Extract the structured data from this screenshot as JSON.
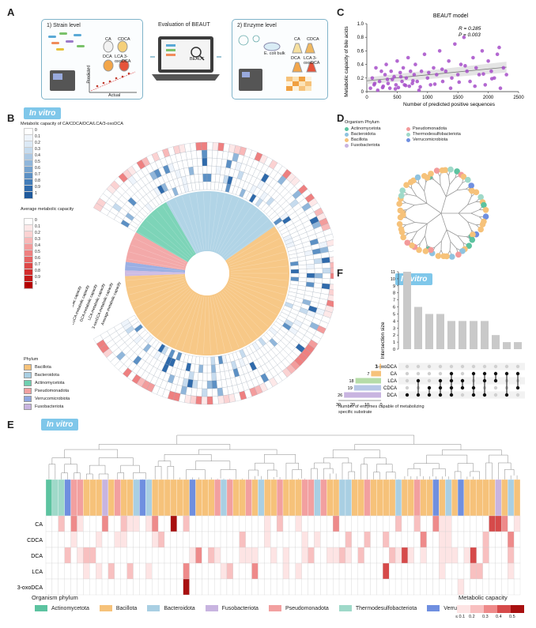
{
  "panels": {
    "a": "A",
    "b": "B",
    "c": "C",
    "d": "D",
    "e": "E",
    "f": "F"
  },
  "badge": "In vitro",
  "panel_a": {
    "left_title": "1) Strain level",
    "center_title": "Evaluation of BEAUT",
    "right_title": "2) Enzyme level",
    "acids_left": [
      "CA",
      "CDCA",
      "DCA",
      "LCA 3-oxoDCA"
    ],
    "acids_right": [
      "CA",
      "CDCA",
      "DCA",
      "LCA 3-oxoDCA"
    ],
    "predicted": "Predicted",
    "actual": "Actual",
    "laptop_text": "BEAUT",
    "ecoli": "E. coli bulk"
  },
  "panel_b": {
    "scale_title": "Metabolic capacity of CA/CDCA/DCA/LCA/3-oxoDCA",
    "scale_ticks": [
      "0",
      "0.1",
      "0.2",
      "0.3",
      "0.4",
      "0.5",
      "0.6",
      "0.7",
      "0.8",
      "0.9",
      "1"
    ],
    "avg_title": "Average metabolic capacity",
    "avg_ticks": [
      "0",
      "0.1",
      "0.2",
      "0.3",
      "0.4",
      "0.5",
      "0.6",
      "0.7",
      "0.8",
      "0.9",
      "1"
    ],
    "ring_labels": [
      "Average metabolic capacity",
      "3-oxoDCA metabolic capacity",
      "LCA metabolic capacity",
      "DCA metabolic capacity",
      "CDCA metabolic capacity",
      "CA metabolic capacity"
    ],
    "phylum_title": "Phylum",
    "phyla": [
      {
        "name": "Bacillota",
        "color": "#f6c27a"
      },
      {
        "name": "Bacteroidota",
        "color": "#a9cfe3"
      },
      {
        "name": "Actinomycetota",
        "color": "#6fcfb0"
      },
      {
        "name": "Pseudomonadota",
        "color": "#f2a0a0"
      },
      {
        "name": "Verrucomicrobiota",
        "color": "#8fa6e0"
      },
      {
        "name": "Fusobacteriota",
        "color": "#c8b4e0"
      }
    ]
  },
  "panel_d": {
    "legend_title": "Organism Phylum",
    "items": [
      {
        "name": "Actinomycetota",
        "color": "#5cc3a0"
      },
      {
        "name": "Pseudomonadota",
        "color": "#f39a9a"
      },
      {
        "name": "Bacteroidota",
        "color": "#8fc3e0"
      },
      {
        "name": "Thermodesulfobacteriota",
        "color": "#9fd9c9"
      },
      {
        "name": "Bacillota",
        "color": "#f6c27a"
      },
      {
        "name": "Verrucomicrobiota",
        "color": "#6f8fe0"
      },
      {
        "name": "Fusobacteriota",
        "color": "#c8b4e0"
      }
    ]
  },
  "panel_e": {
    "rows": [
      "CA",
      "CDCA",
      "DCA",
      "LCA",
      "3-oxoDCA"
    ],
    "legend_title": "Organism phylum",
    "phyla": [
      {
        "name": "Actinomycetota",
        "color": "#5cc3a0"
      },
      {
        "name": "Bacillota",
        "color": "#f6c27a"
      },
      {
        "name": "Bacteroidota",
        "color": "#a9cfe3"
      },
      {
        "name": "Fusobacteriota",
        "color": "#c8b4e0"
      },
      {
        "name": "Pseudomonadota",
        "color": "#f2a0a0"
      },
      {
        "name": "Thermodesulfobacteriota",
        "color": "#9fd9c9"
      },
      {
        "name": "Verrucomicrobiota",
        "color": "#6f8fe0"
      }
    ],
    "capacity_title": "Metabolic capacity",
    "capacity_ticks": [
      "≤ 0.1",
      "0.2",
      "0.3",
      "0.4",
      "0.5"
    ]
  },
  "chart_data": [
    {
      "type": "scatter",
      "title": "BEAUT model",
      "xlabel": "Number of predicted positive sequences",
      "ylabel": "Metabolic capacity of bile acids",
      "xlim": [
        0,
        2500
      ],
      "ylim": [
        0,
        1.0
      ],
      "xticks": [
        "0",
        "500",
        "1000",
        "1500",
        "2000",
        "2500"
      ],
      "yticks": [
        "0",
        "0.2",
        "0.4",
        "0.6",
        "0.8",
        "1.0"
      ],
      "stats": [
        "R = 0.285",
        "P = 0.003"
      ],
      "point_color": "#a64ec9",
      "x": [
        60,
        90,
        120,
        150,
        180,
        210,
        240,
        270,
        300,
        320,
        350,
        380,
        400,
        420,
        450,
        480,
        500,
        520,
        550,
        580,
        600,
        620,
        650,
        680,
        700,
        720,
        750,
        780,
        800,
        830,
        860,
        900,
        950,
        1000,
        1050,
        1100,
        1150,
        1200,
        1250,
        1300,
        1350,
        1400,
        1450,
        1500,
        1550,
        1600,
        1650,
        1700,
        1750,
        1800,
        1850,
        1900,
        1950,
        2000,
        2050,
        2100,
        2150,
        2200,
        2250,
        2300,
        130,
        260,
        340,
        470,
        560,
        640,
        760,
        880,
        1020,
        1120,
        1240,
        1380,
        1520,
        1620,
        1780,
        1920,
        2060,
        2180
      ],
      "y": [
        0.05,
        0.2,
        0.1,
        0.35,
        0.02,
        0.15,
        0.3,
        0.08,
        0.25,
        0.4,
        0.12,
        0.05,
        0.3,
        0.18,
        0.22,
        0.1,
        0.45,
        0.06,
        0.28,
        0.15,
        0.35,
        0.1,
        0.2,
        0.5,
        0.08,
        0.3,
        0.12,
        0.25,
        0.4,
        0.15,
        0.02,
        0.3,
        0.55,
        0.2,
        0.1,
        0.35,
        0.25,
        0.6,
        0.15,
        0.3,
        0.45,
        0.2,
        0.7,
        0.25,
        0.4,
        0.8,
        0.3,
        0.15,
        0.5,
        0.35,
        0.25,
        0.6,
        0.1,
        0.45,
        0.3,
        0.2,
        0.55,
        0.05,
        0.35,
        0.25,
        0.12,
        0.06,
        0.18,
        0.04,
        0.22,
        0.09,
        0.16,
        0.07,
        0.28,
        0.11,
        0.33,
        0.05,
        0.14,
        0.38,
        0.08,
        0.26,
        0.19,
        0.65
      ],
      "trend": {
        "x": [
          0,
          2300
        ],
        "y": [
          0.16,
          0.36
        ]
      }
    },
    {
      "type": "bar",
      "title": "",
      "ylabel": "Intersection size",
      "ylim": [
        0,
        11
      ],
      "yticks": [
        "0",
        "1",
        "2",
        "3",
        "4",
        "5",
        "6",
        "7",
        "8",
        "9",
        "10",
        "11"
      ],
      "values": [
        11,
        6,
        5,
        5,
        4,
        4,
        4,
        4,
        2,
        1,
        1
      ],
      "sets": [
        "3-oxoDCA",
        "CA",
        "LCA",
        "CDCA",
        "DCA"
      ],
      "set_sizes": [
        1,
        7,
        18,
        19,
        26
      ],
      "set_colors": [
        "#f6c27a",
        "#f6c27a",
        "#b6dca8",
        "#b7c7e6",
        "#c8b4e0"
      ],
      "set_size_xlabel": "Number of enzymes capable of metabolizing specific substrate",
      "set_size_ticks": [
        "30",
        "20",
        "10",
        "0"
      ],
      "memberships": [
        [
          4
        ],
        [
          2,
          4
        ],
        [
          3,
          4
        ],
        [
          2,
          3,
          4
        ],
        [
          1,
          2,
          3,
          4
        ],
        [
          2,
          3
        ],
        [
          1,
          3,
          4
        ],
        [
          1,
          2,
          4
        ],
        [
          1,
          2
        ],
        [
          1,
          4
        ],
        [
          1,
          3
        ]
      ]
    }
  ]
}
